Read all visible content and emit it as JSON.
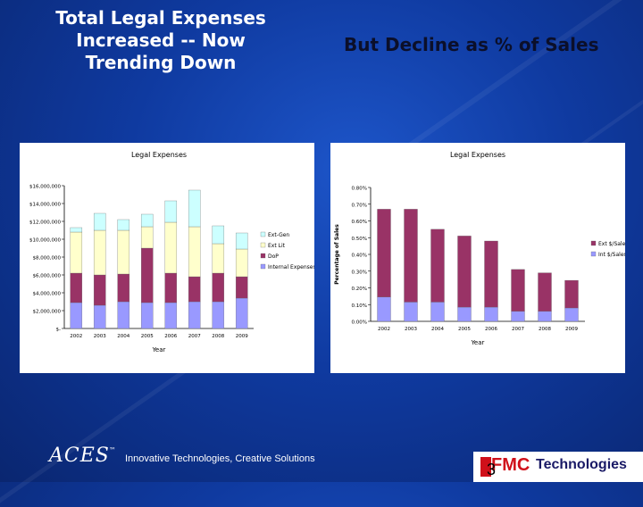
{
  "slide": {
    "title_left": "Total Legal Expenses Increased -- Now Trending Down",
    "title_right": "But Decline as % of Sales",
    "slide_number": "3"
  },
  "footer": {
    "logo_text": "ACES",
    "trademark": "™",
    "tagline": "Innovative Technologies, Creative Solutions",
    "brand_fmc": "FMC",
    "brand_tech": "Technologies"
  },
  "colors": {
    "ext_gen": "#ccffff",
    "ext_lit": "#ffffcc",
    "dep": "#993366",
    "internal": "#9999ff",
    "ext_sales": "#993366",
    "int_sales": "#9999ff"
  },
  "chart_data": [
    {
      "type": "bar",
      "stacked": true,
      "title": "Legal Expenses",
      "xlabel": "Year",
      "ylabel": "",
      "categories": [
        "2002",
        "2003",
        "2004",
        "2005",
        "2006",
        "2007",
        "2008",
        "2009"
      ],
      "ylim": [
        0,
        16000000
      ],
      "yticks": [
        "$-",
        "$2,000,000",
        "$4,000,000",
        "$6,000,000",
        "$8,000,000",
        "$10,000,000",
        "$12,000,000",
        "$14,000,000",
        "$16,000,000"
      ],
      "series": [
        {
          "name": "Internal Expenses",
          "color": "#9999ff",
          "values": [
            2900000,
            2600000,
            3000000,
            2900000,
            2900000,
            3000000,
            3000000,
            3400000
          ]
        },
        {
          "name": "DoP",
          "color": "#993366",
          "values": [
            3300000,
            3400000,
            3100000,
            6100000,
            3300000,
            2800000,
            3200000,
            2400000
          ]
        },
        {
          "name": "Ext Lit",
          "color": "#ffffcc",
          "values": [
            4600000,
            5000000,
            4900000,
            2400000,
            5700000,
            5600000,
            3300000,
            3100000
          ]
        },
        {
          "name": "Ext-Gen",
          "color": "#ccffff",
          "values": [
            500000,
            1900000,
            1200000,
            1400000,
            2400000,
            4100000,
            2000000,
            1800000
          ]
        }
      ],
      "legend_order": [
        "Ext-Gen",
        "Ext Lit",
        "DoP",
        "Internal Expenses"
      ],
      "legend": "right",
      "grid": false
    },
    {
      "type": "bar",
      "stacked": true,
      "title": "Legal Expenses",
      "xlabel": "Year",
      "ylabel": "Percentage of Sales",
      "categories": [
        "2002",
        "2003",
        "2004",
        "2005",
        "2006",
        "2007",
        "2008",
        "2009"
      ],
      "ylim": [
        0,
        0.008
      ],
      "yticks": [
        "0.00%",
        "0.10%",
        "0.20%",
        "0.30%",
        "0.40%",
        "0.50%",
        "0.60%",
        "0.70%",
        "0.80%"
      ],
      "series": [
        {
          "name": "Int $/Sales",
          "color": "#9999ff",
          "values": [
            0.00145,
            0.00115,
            0.00115,
            0.00085,
            0.00085,
            0.0006,
            0.0006,
            0.0008
          ]
        },
        {
          "name": "Ext $/Sales",
          "color": "#993366",
          "values": [
            0.00525,
            0.00555,
            0.00435,
            0.00425,
            0.00395,
            0.0025,
            0.0023,
            0.00165
          ]
        }
      ],
      "legend_order": [
        "Ext $/Sales",
        "Int $/Sales"
      ],
      "legend": "right",
      "grid": false
    }
  ]
}
